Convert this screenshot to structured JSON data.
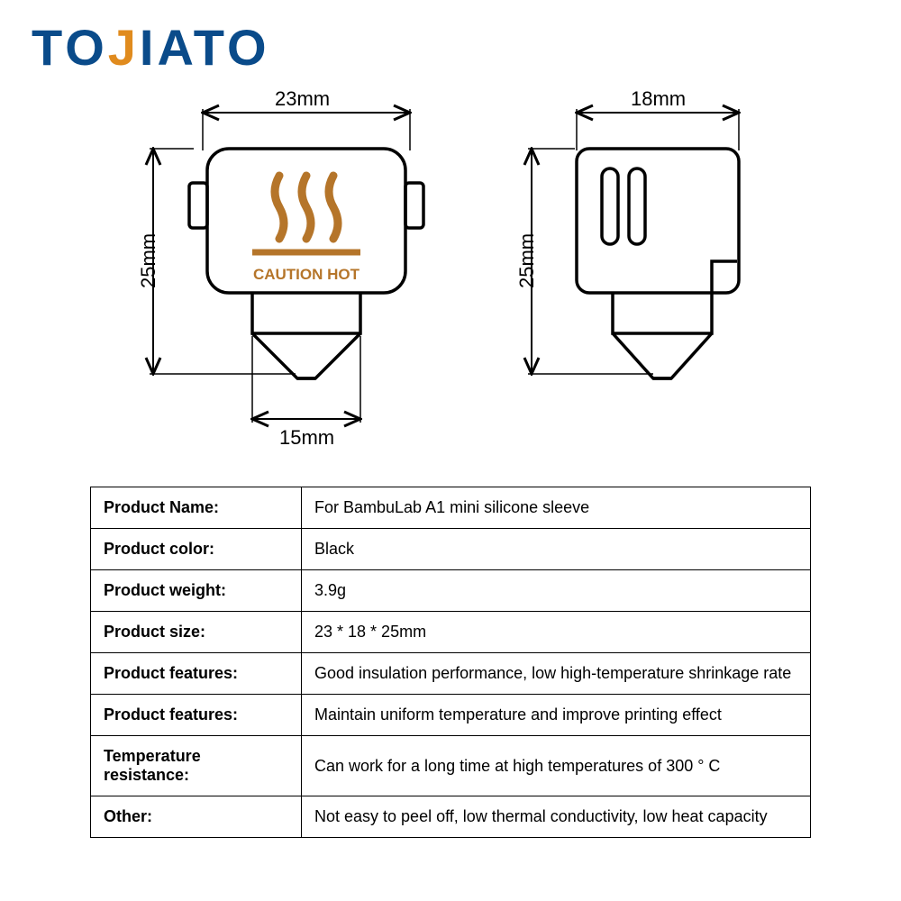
{
  "brand": {
    "part1": "TO",
    "part2": "J",
    "part3": "IATO"
  },
  "caution_text": "CAUTION HOT",
  "dimensions": {
    "front_width": "23mm",
    "side_width": "18mm",
    "front_height": "25mm",
    "side_height": "25mm",
    "nozzle_width": "15mm"
  },
  "diagram_style": {
    "stroke_color": "#000000",
    "stroke_width": 3.5,
    "thin_stroke": 2,
    "heat_color": "#b5752a",
    "heat_text_size": 14,
    "dim_font_size": 22
  },
  "specs": [
    {
      "key": "Product Name:",
      "value": "For BambuLab A1 mini silicone sleeve"
    },
    {
      "key": "Product color:",
      "value": "Black"
    },
    {
      "key": "Product weight:",
      "value": "3.9g"
    },
    {
      "key": "Product size:",
      "value": "23 * 18 * 25mm"
    },
    {
      "key": "Product features:",
      "value": "Good insulation performance, low high-temperature shrinkage rate"
    },
    {
      "key": "Product features:",
      "value": "Maintain uniform temperature and improve printing effect"
    },
    {
      "key": "Temperature resistance:",
      "value": "Can work for a long time at high temperatures of 300 ° C"
    },
    {
      "key": "Other:",
      "value": "Not easy to peel off, low thermal conductivity, low heat capacity"
    }
  ]
}
